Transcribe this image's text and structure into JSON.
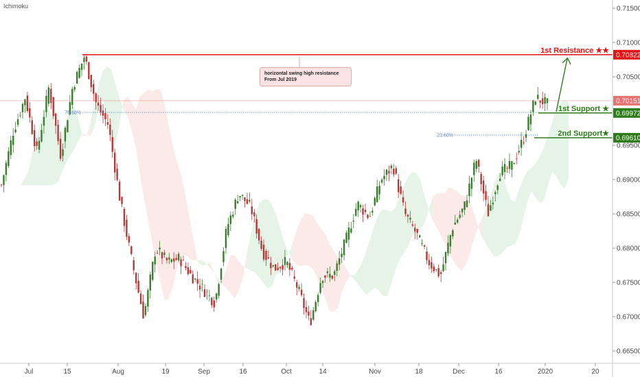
{
  "indicator": "Ichimoku",
  "callout": {
    "line1": "horizontal swing high resistance",
    "line2": "From Jul 2019"
  },
  "levels": {
    "resistance": {
      "label": "1st Resistance ★★",
      "price": 0.70822,
      "price_text": "0.70822",
      "color": "#e01414"
    },
    "support1": {
      "label": "1st Support ★",
      "price": 0.69972,
      "price_text": "0.69972",
      "color": "#2e7d1a"
    },
    "support2": {
      "label": "2nd Support★",
      "price": 0.6961,
      "price_text": "0.69610",
      "color": "#2e7d1a"
    },
    "current": {
      "price": 0.70151,
      "price_text": "0.70151",
      "color": "#e57373"
    }
  },
  "fib": {
    "fib786": {
      "label": "78.60%",
      "price": 0.6998
    },
    "fib236": {
      "label": "23.60%",
      "price": 0.6965
    }
  },
  "chart_data": {
    "type": "candlestick",
    "instrument_note": "Ichimoku",
    "y_axis": {
      "ticks": [
        "0.71500",
        "0.71000",
        "0.70500",
        "0.70000",
        "0.69500",
        "0.69000",
        "0.68500",
        "0.68000",
        "0.67500",
        "0.67000",
        "0.66500"
      ],
      "ylim": [
        0.6632,
        0.7162
      ]
    },
    "x_axis": {
      "ticks": [
        "Jul",
        "15",
        "Aug",
        "19",
        "Sep",
        "16",
        "Oct",
        "14",
        "Nov",
        "18",
        "Dec",
        "16",
        "2020",
        "20"
      ]
    },
    "price_path": [
      [
        "Jul",
        0.6892
      ],
      [
        "Jul",
        0.697
      ],
      [
        "Jul",
        0.702
      ],
      [
        "Jul",
        0.694
      ],
      [
        "Jul",
        0.7035
      ],
      [
        "15",
        0.6935
      ],
      [
        "15",
        0.7035
      ],
      [
        "15",
        0.708
      ],
      [
        "15",
        0.701
      ],
      [
        "15",
        0.698
      ],
      [
        "Aug",
        0.687
      ],
      [
        "Aug",
        0.678
      ],
      [
        "Aug",
        0.67
      ],
      [
        "Aug",
        0.68
      ],
      [
        "Aug",
        0.678
      ],
      [
        "19",
        0.6785
      ],
      [
        "19",
        0.676
      ],
      [
        "Sep",
        0.674
      ],
      [
        "Sep",
        0.672
      ],
      [
        "Sep",
        0.683
      ],
      [
        "16",
        0.688
      ],
      [
        "16",
        0.686
      ],
      [
        "16",
        0.6795
      ],
      [
        "16",
        0.677
      ],
      [
        "Oct",
        0.678
      ],
      [
        "Oct",
        0.674
      ],
      [
        "Oct",
        0.669
      ],
      [
        "Oct",
        0.676
      ],
      [
        "14",
        0.676
      ],
      [
        "14",
        0.681
      ],
      [
        "14",
        0.6865
      ],
      [
        "14",
        0.6845
      ],
      [
        "Nov",
        0.69
      ],
      [
        "Nov",
        0.692
      ],
      [
        "Nov",
        0.685
      ],
      [
        "18",
        0.682
      ],
      [
        "18",
        0.678
      ],
      [
        "18",
        0.676
      ],
      [
        "Dec",
        0.683
      ],
      [
        "Dec",
        0.686
      ],
      [
        "Dec",
        0.693
      ],
      [
        "Dec",
        0.685
      ],
      [
        "16",
        0.691
      ],
      [
        "16",
        0.692
      ],
      [
        "16",
        0.696
      ],
      [
        "2020",
        0.702
      ],
      [
        "2020",
        0.701
      ]
    ],
    "markers": [
      {
        "name": "resistance",
        "value": 0.70822
      },
      {
        "name": "support1",
        "value": 0.69972
      },
      {
        "name": "support2",
        "value": 0.6961
      }
    ]
  }
}
